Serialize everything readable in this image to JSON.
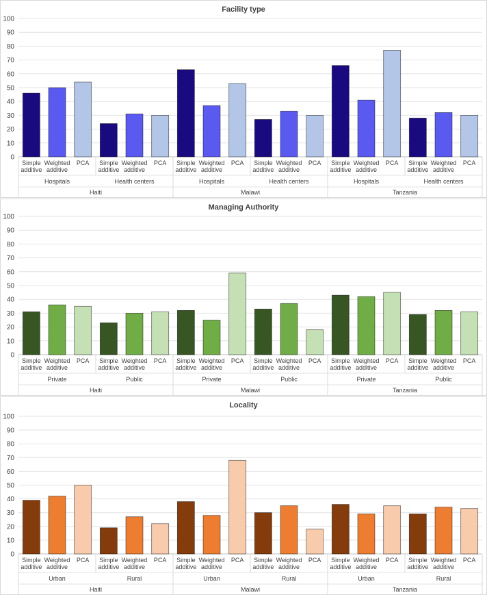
{
  "chart_data": [
    {
      "type": "bar",
      "title": "Facility type",
      "ylim": [
        0,
        100
      ],
      "yticks": [
        0,
        10,
        20,
        30,
        40,
        50,
        60,
        70,
        80,
        90,
        100
      ],
      "countries": [
        "Haiti",
        "Malawi",
        "Tanzania"
      ],
      "subgroups": [
        "Hospitals",
        "Health centers"
      ],
      "methods": [
        [
          "Simple",
          "additive"
        ],
        [
          "Weighted",
          "additive"
        ],
        [
          "PCA"
        ]
      ],
      "colors": [
        "#190a80",
        "#5a5af0",
        "#b3c6e8"
      ],
      "values": [
        [
          [
            46,
            50,
            54
          ],
          [
            24,
            31,
            30
          ]
        ],
        [
          [
            63,
            37,
            53
          ],
          [
            27,
            33,
            30
          ]
        ],
        [
          [
            66,
            41,
            77
          ],
          [
            28,
            32,
            30
          ]
        ]
      ]
    },
    {
      "type": "bar",
      "title": "Managing Authority",
      "ylim": [
        0,
        100
      ],
      "yticks": [
        0,
        10,
        20,
        30,
        40,
        50,
        60,
        70,
        80,
        90,
        100
      ],
      "countries": [
        "Haiti",
        "Malawi",
        "Tanzania"
      ],
      "subgroups": [
        "Private",
        "Public"
      ],
      "methods": [
        [
          "Simple",
          "additive"
        ],
        [
          "Weighted",
          "additive"
        ],
        [
          "PCA"
        ]
      ],
      "colors": [
        "#375623",
        "#70ad47",
        "#c5e0b4"
      ],
      "values": [
        [
          [
            31,
            36,
            35
          ],
          [
            23,
            30,
            31
          ]
        ],
        [
          [
            32,
            25,
            59
          ],
          [
            33,
            37,
            18
          ]
        ],
        [
          [
            43,
            42,
            45
          ],
          [
            29,
            32,
            31
          ]
        ]
      ]
    },
    {
      "type": "bar",
      "title": "Locality",
      "ylim": [
        0,
        100
      ],
      "yticks": [
        0,
        10,
        20,
        30,
        40,
        50,
        60,
        70,
        80,
        90,
        100
      ],
      "countries": [
        "Haiti",
        "Malawi",
        "Tanzania"
      ],
      "subgroups": [
        "Urban",
        "Rural"
      ],
      "methods": [
        [
          "Simple",
          "additive"
        ],
        [
          "Weighted",
          "additive"
        ],
        [
          "PCA"
        ]
      ],
      "colors": [
        "#843c0c",
        "#ed7d31",
        "#f8cbad"
      ],
      "values": [
        [
          [
            39,
            42,
            50
          ],
          [
            19,
            27,
            22
          ]
        ],
        [
          [
            38,
            28,
            68
          ],
          [
            30,
            35,
            18
          ]
        ],
        [
          [
            36,
            29,
            35
          ],
          [
            29,
            34,
            33
          ]
        ]
      ]
    }
  ]
}
